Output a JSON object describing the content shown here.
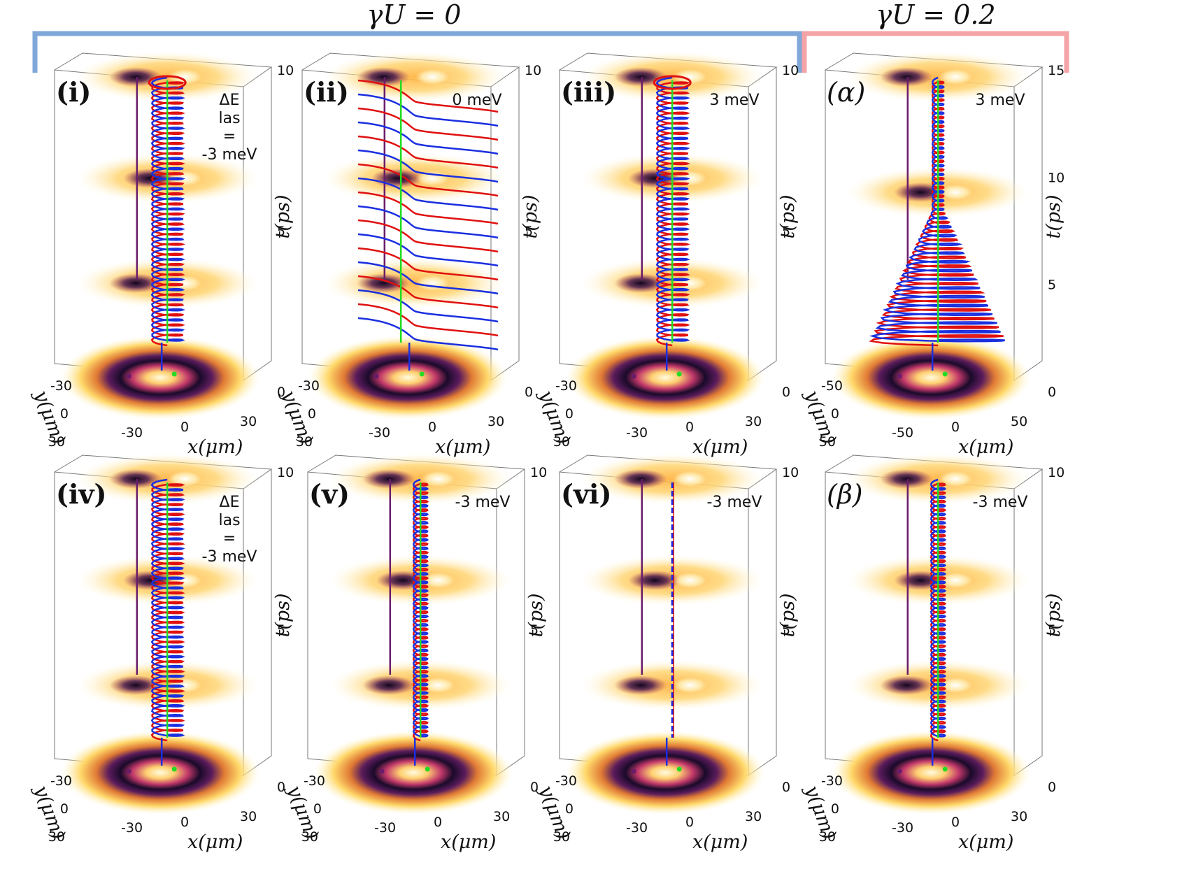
{
  "headers": {
    "left": "γU = 0",
    "right": "γU = 0.2",
    "left_bracket_color": "#7fa7d8",
    "right_bracket_color": "#f4a3a6"
  },
  "colors": {
    "trace_a": "#e01010",
    "trace_b": "#1a2fe0",
    "core": "#22dd22",
    "pole": "#6a1b6a",
    "density_dark": "#1a0a2a",
    "density_bright": "#fff7c8"
  },
  "panels": [
    {
      "id": "i",
      "label": "(i)",
      "energy_lines": [
        "ΔE",
        "las",
        "=",
        "-3 meV"
      ],
      "t_ticks": [
        "10",
        "5",
        "0"
      ],
      "x_label": "x(μm)",
      "y_label": "y(μm)",
      "x_ticks": [
        "-30",
        "0",
        "30"
      ],
      "y_ticks": [
        "-30",
        "0",
        "30"
      ],
      "style": "helix",
      "rotation_icon": true
    },
    {
      "id": "ii",
      "label": "(ii)",
      "energy_lines": [
        "0 meV"
      ],
      "t_ticks": [
        "10",
        "5",
        "0"
      ],
      "x_label": "x(μm)",
      "y_label": "y(μm)",
      "x_ticks": [
        "-30",
        "0",
        "30"
      ],
      "y_ticks": [
        "-30",
        "0",
        "30"
      ],
      "style": "wave",
      "rotation_icon": false
    },
    {
      "id": "iii",
      "label": "(iii)",
      "energy_lines": [
        "3 meV"
      ],
      "t_ticks": [
        "10",
        "5",
        "0"
      ],
      "x_label": "x(μm)",
      "y_label": "y(μm)",
      "x_ticks": [
        "-30",
        "0",
        "30"
      ],
      "y_ticks": [
        "-30",
        "0",
        "30"
      ],
      "style": "helix",
      "rotation_icon": true
    },
    {
      "id": "alpha",
      "label": "(α)",
      "energy_lines": [
        "3 meV"
      ],
      "t_ticks": [
        "15",
        "10",
        "5",
        "0"
      ],
      "x_label": "x(μm)",
      "y_label": "y(μm)",
      "x_ticks": [
        "-50",
        "0",
        "50"
      ],
      "y_ticks": [
        "-50",
        "0",
        "50"
      ],
      "style": "cone",
      "rotation_icon": false
    },
    {
      "id": "iv",
      "label": "(iv)",
      "energy_lines": [
        "ΔE",
        "las",
        "=",
        "-3 meV"
      ],
      "t_ticks": [
        "10",
        "5",
        "0"
      ],
      "x_label": "x(μm)",
      "y_label": "y(μm)",
      "x_ticks": [
        "-30",
        "0",
        "30"
      ],
      "y_ticks": [
        "-30",
        "0",
        "30"
      ],
      "style": "helix",
      "rotation_icon": false
    },
    {
      "id": "v",
      "label": "(v)",
      "energy_lines": [
        "-3 meV"
      ],
      "t_ticks": [
        "10",
        "5",
        "0"
      ],
      "x_label": "x(μm)",
      "y_label": "y(μm)",
      "x_ticks": [
        "-30",
        "0",
        "30"
      ],
      "y_ticks": [
        "-30",
        "0",
        "30"
      ],
      "style": "thin",
      "rotation_icon": false
    },
    {
      "id": "vi",
      "label": "(vi)",
      "energy_lines": [
        "-3 meV"
      ],
      "t_ticks": [
        "10",
        "5",
        "0"
      ],
      "x_label": "x(μm)",
      "y_label": "y(μm)",
      "x_ticks": [
        "-30",
        "0",
        "30"
      ],
      "y_ticks": [
        "-30",
        "0",
        "30"
      ],
      "style": "line",
      "rotation_icon": false
    },
    {
      "id": "beta",
      "label": "(β)",
      "energy_lines": [
        "-3 meV"
      ],
      "t_ticks": [
        "10",
        "5",
        "0"
      ],
      "x_label": "x(μm)",
      "y_label": "y(μm)",
      "x_ticks": [
        "-30",
        "0",
        "30"
      ],
      "y_ticks": [
        "-30",
        "0",
        "30"
      ],
      "style": "thin",
      "rotation_icon": false
    }
  ],
  "time_axis_label": "t(ps)"
}
